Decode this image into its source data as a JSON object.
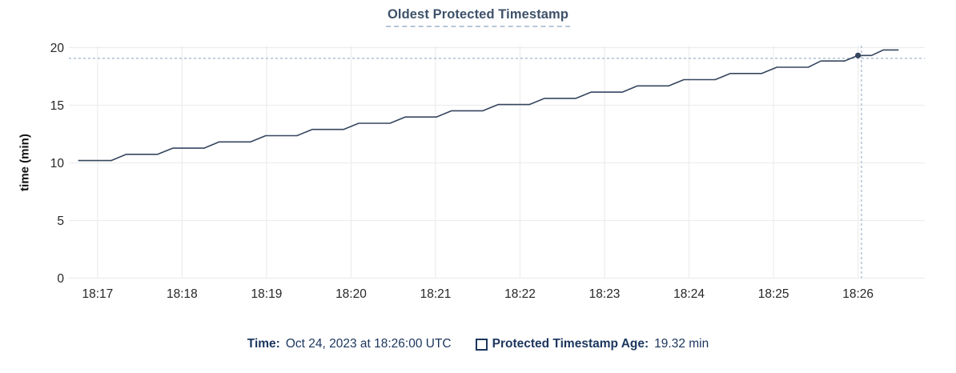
{
  "title": "Oldest Protected Timestamp",
  "tooltip": {
    "time_label": "Time:",
    "time_value": "Oct 24, 2023 at 18:26:00 UTC",
    "age_label": "Protected Timestamp Age:",
    "age_value": "19.32 min"
  },
  "colors": {
    "line": "#36465f",
    "marker": "#36465f",
    "grid": "#ededed",
    "crosshair": "#9fb3c8",
    "tick_text": "#262626",
    "title_text": "#3e5169",
    "title_underline": "#b6c6d6",
    "legend_text": "#1b365e"
  },
  "chart_data": {
    "type": "line",
    "title": "Oldest Protected Timestamp",
    "xlabel": "",
    "ylabel": "time (min)",
    "x_unit": "clock time UTC, stored as decimal minutes after 18:00",
    "xlim": [
      16.66,
      26.79
    ],
    "ylim": [
      0,
      20
    ],
    "grid": true,
    "yticks": [
      0,
      5,
      10,
      15,
      20
    ],
    "xticks": [
      {
        "t": 17,
        "label": "18:17"
      },
      {
        "t": 18,
        "label": "18:18"
      },
      {
        "t": 19,
        "label": "18:19"
      },
      {
        "t": 20,
        "label": "18:20"
      },
      {
        "t": 21,
        "label": "18:21"
      },
      {
        "t": 22,
        "label": "18:22"
      },
      {
        "t": 23,
        "label": "18:23"
      },
      {
        "t": 24,
        "label": "18:24"
      },
      {
        "t": 25,
        "label": "18:25"
      },
      {
        "t": 26,
        "label": "18:26"
      }
    ],
    "series": [
      {
        "name": "Protected Timestamp Age",
        "points": [
          [
            16.77,
            10.2
          ],
          [
            17.16,
            10.2
          ],
          [
            17.34,
            10.74
          ],
          [
            17.71,
            10.74
          ],
          [
            17.89,
            11.28
          ],
          [
            18.26,
            11.28
          ],
          [
            18.44,
            11.82
          ],
          [
            18.81,
            11.82
          ],
          [
            18.99,
            12.36
          ],
          [
            19.36,
            12.36
          ],
          [
            19.54,
            12.9
          ],
          [
            19.91,
            12.9
          ],
          [
            20.09,
            13.44
          ],
          [
            20.46,
            13.44
          ],
          [
            20.64,
            13.98
          ],
          [
            21.01,
            13.98
          ],
          [
            21.19,
            14.52
          ],
          [
            21.56,
            14.52
          ],
          [
            21.74,
            15.06
          ],
          [
            22.11,
            15.06
          ],
          [
            22.29,
            15.6
          ],
          [
            22.66,
            15.6
          ],
          [
            22.84,
            16.14
          ],
          [
            23.21,
            16.14
          ],
          [
            23.39,
            16.68
          ],
          [
            23.76,
            16.68
          ],
          [
            23.94,
            17.22
          ],
          [
            24.31,
            17.22
          ],
          [
            24.49,
            17.76
          ],
          [
            24.86,
            17.76
          ],
          [
            25.04,
            18.3
          ],
          [
            25.41,
            18.3
          ],
          [
            25.56,
            18.84
          ],
          [
            25.84,
            18.84
          ],
          [
            26.0,
            19.32
          ],
          [
            26.16,
            19.32
          ],
          [
            26.3,
            19.8
          ],
          [
            26.48,
            19.8
          ]
        ]
      }
    ],
    "hover_point": {
      "t": 26.0,
      "value": 19.32
    },
    "crosshair": {
      "t": 26.04,
      "value": 19.07
    }
  }
}
